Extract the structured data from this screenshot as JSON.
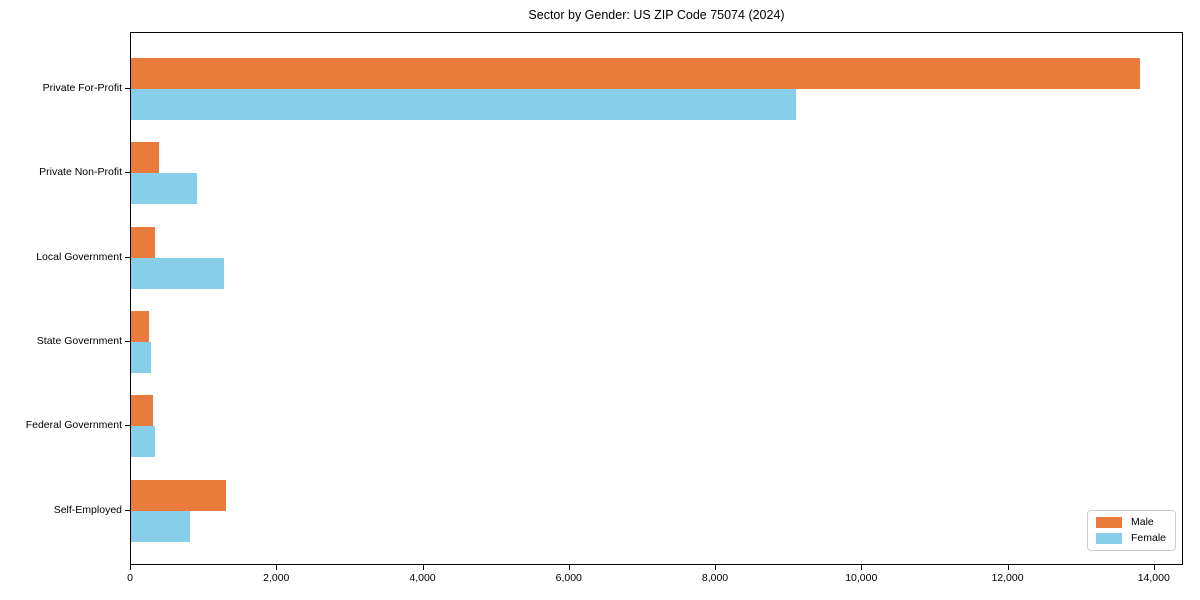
{
  "title": "Sector by Gender: US ZIP Code 75074 (2024)",
  "chart_data": {
    "type": "bar",
    "orientation": "horizontal",
    "title": "Sector by Gender: US ZIP Code 75074 (2024)",
    "categories": [
      "Private For-Profit",
      "Private Non-Profit",
      "Local Government",
      "State Government",
      "Federal Government",
      "Self-Employed"
    ],
    "series": [
      {
        "name": "Male",
        "color": "#E97C3C",
        "values": [
          13800,
          380,
          330,
          240,
          300,
          1300
        ]
      },
      {
        "name": "Female",
        "color": "#87CEEB",
        "values": [
          9100,
          900,
          1270,
          280,
          330,
          810
        ]
      }
    ],
    "xlabel": "",
    "ylabel": "",
    "xlim": [
      0,
      14400
    ],
    "xticks": [
      0,
      2000,
      4000,
      6000,
      8000,
      10000,
      12000,
      14000
    ],
    "xtick_labels": [
      "0",
      "2,000",
      "4,000",
      "6,000",
      "8,000",
      "10,000",
      "12,000",
      "14,000"
    ],
    "grid": false,
    "legend_position": "lower right",
    "background_color": "#ffffff",
    "spine_color": "#000000"
  }
}
